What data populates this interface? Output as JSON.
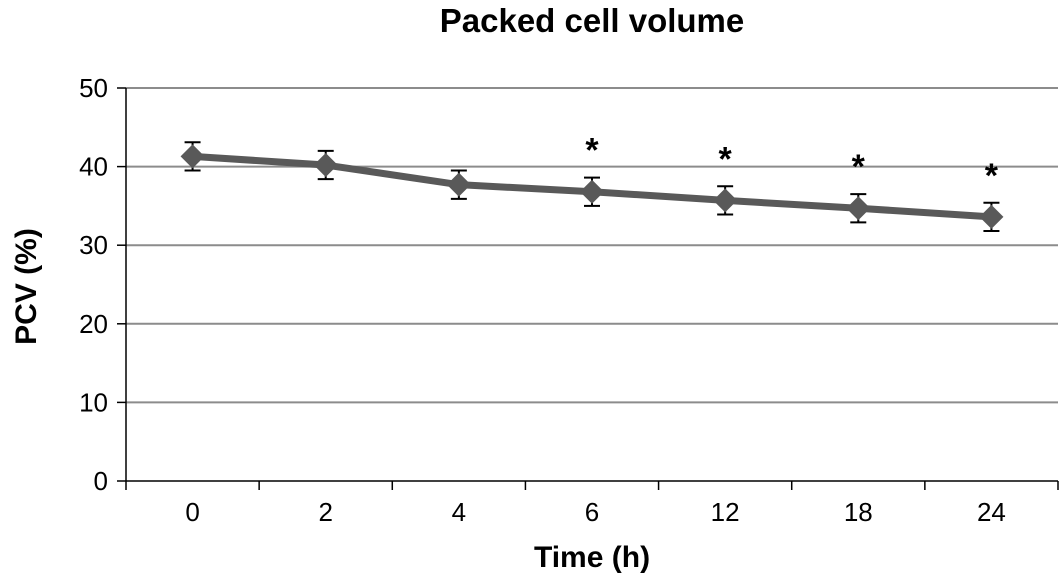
{
  "chart_data": {
    "type": "line",
    "title": "Packed cell volume",
    "xlabel": "Time (h)",
    "ylabel": "PCV (%)",
    "categories": [
      "0",
      "2",
      "4",
      "6",
      "12",
      "18",
      "24"
    ],
    "series": [
      {
        "values": [
          41.3,
          40.2,
          37.7,
          36.8,
          35.7,
          34.7,
          33.6
        ],
        "error": [
          1.8,
          1.8,
          1.8,
          1.8,
          1.8,
          1.8,
          1.8
        ]
      }
    ],
    "significance": [
      "",
      "",
      "",
      "*",
      "*",
      "*",
      "*"
    ],
    "ylim": [
      0,
      50
    ],
    "yticks": [
      0,
      10,
      20,
      30,
      40,
      50
    ],
    "grid": true,
    "legend": "none",
    "colors": {
      "line": "#595959",
      "marker": "#595959",
      "grid": "#8c8c8c",
      "axis": "#000000",
      "text": "#000000"
    }
  }
}
